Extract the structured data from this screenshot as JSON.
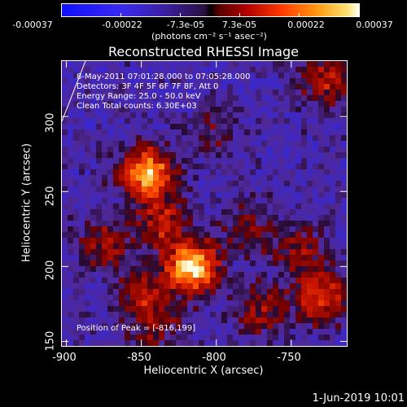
{
  "colorbar": {
    "ticks": [
      "-0.00037",
      "-0.00022",
      "-7.3e-05",
      "7.3e-05",
      "0.00022",
      "0.00037"
    ],
    "tick_values": [
      -0.00037,
      -0.00022,
      -7.3e-05,
      7.3e-05,
      0.00022,
      0.00037
    ],
    "unit": "(photons cm⁻² s⁻¹ asec⁻²)",
    "range": [
      -0.00037,
      0.00037
    ]
  },
  "info": {
    "time": "8-May-2011 07:01:28.000 to 07:05:28.000",
    "detectors": "Detectors: 3F 4F 5F 6F 7F 8F, Att 0",
    "energy": "Energy Range: 25.0 - 50.0 keV",
    "clean": "Clean     Total counts: 6.30E+03",
    "peak": "Position of Peak = [-816,199]"
  },
  "footer": {
    "timestamp": "1-Jun-2019 10:01"
  },
  "chart_data": {
    "type": "heatmap",
    "title": "Reconstructed RHESSI Image",
    "xlabel": "Heliocentric X (arcsec)",
    "ylabel": "Heliocentric Y (arcsec)",
    "xlim": [
      -903,
      -713
    ],
    "ylim": [
      147,
      337
    ],
    "xticks": [
      -900,
      -850,
      -800,
      -750
    ],
    "yticks": [
      150,
      200,
      250,
      300
    ],
    "peak": {
      "x": -816,
      "y": 199
    },
    "sources": [
      {
        "x": -816,
        "y": 199,
        "peak_fraction": 1.0
      },
      {
        "x": -846,
        "y": 262,
        "peak_fraction": 0.92
      },
      {
        "x": -730,
        "y": 180,
        "peak_fraction": 0.6
      },
      {
        "x": -726,
        "y": 325,
        "peak_fraction": 0.45
      },
      {
        "x": -836,
        "y": 228,
        "peak_fraction": 0.45
      },
      {
        "x": -875,
        "y": 215,
        "peak_fraction": 0.38
      },
      {
        "x": -850,
        "y": 182,
        "peak_fraction": 0.4
      },
      {
        "x": -778,
        "y": 226,
        "peak_fraction": 0.3
      },
      {
        "x": -770,
        "y": 170,
        "peak_fraction": 0.35
      },
      {
        "x": -745,
        "y": 210,
        "peak_fraction": 0.35
      },
      {
        "x": -840,
        "y": 160,
        "peak_fraction": 0.3
      },
      {
        "x": -800,
        "y": 290,
        "peak_fraction": 0.2
      }
    ]
  }
}
